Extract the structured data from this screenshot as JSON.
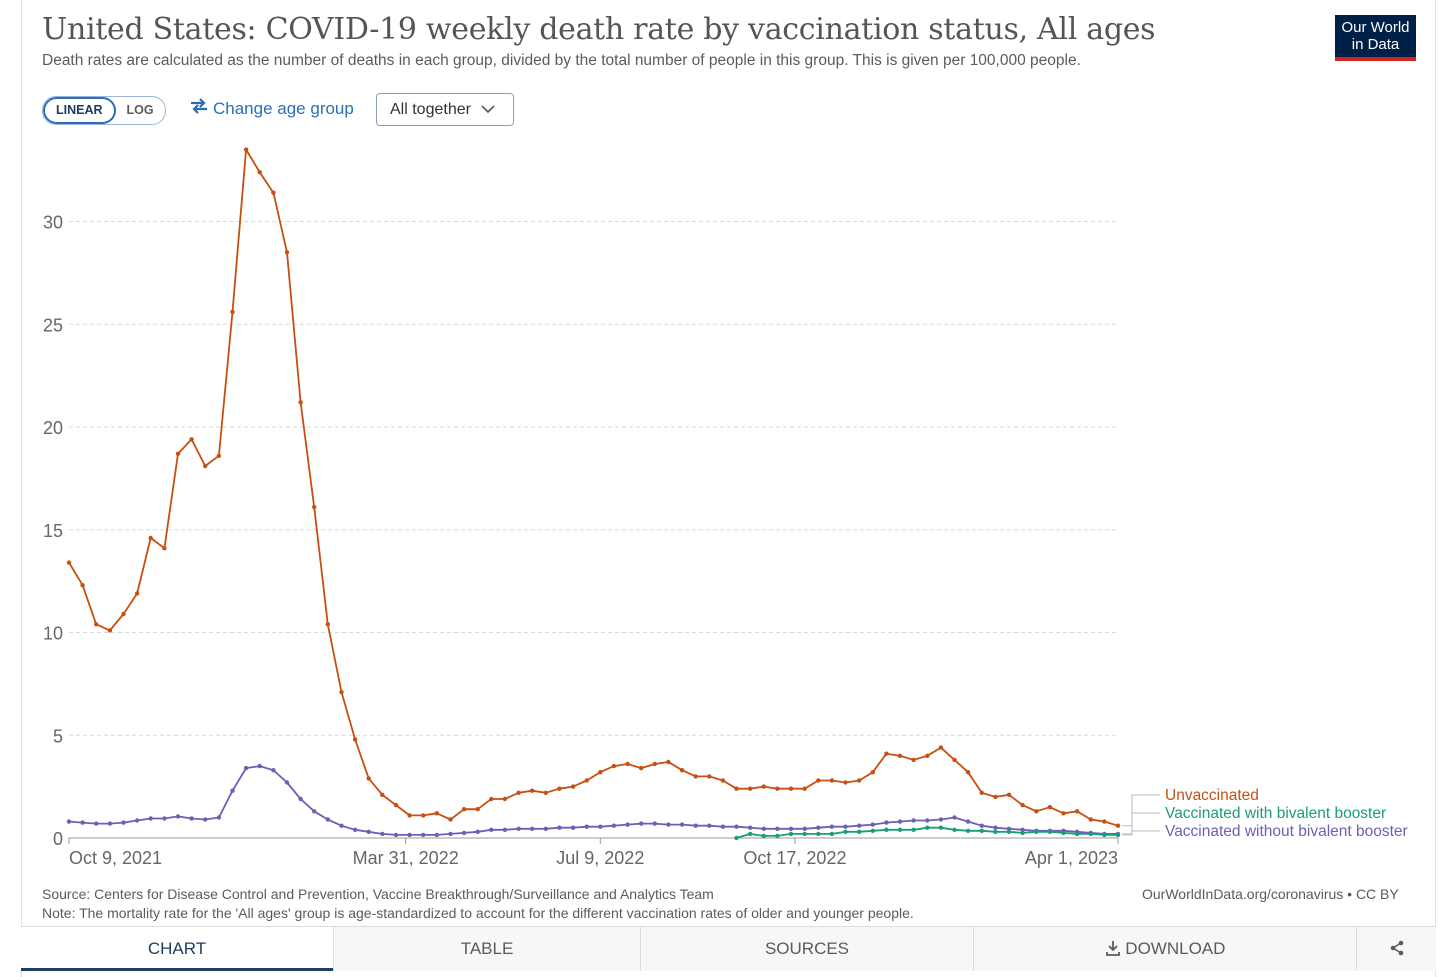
{
  "title": "United States: COVID-19 weekly death rate by vaccination status, All ages",
  "subtitle": "Death rates are calculated as the number of deaths in each group, divided by the total number of people in this group. This is given per 100,000 people.",
  "logo": {
    "line1": "Our World",
    "line2": "in Data"
  },
  "controls": {
    "linear_label": "LINEAR",
    "log_label": "LOG",
    "change_age_label": "Change age group",
    "age_group_selected": "All together"
  },
  "footer": {
    "source": "Source: Centers for Disease Control and Prevention, Vaccine Breakthrough/Surveillance and Analytics Team",
    "note": "Note: The mortality rate for the 'All ages' group is age-standardized to account for the different vaccination rates of older and younger people.",
    "link": "OurWorldInData.org/coronavirus • CC BY"
  },
  "tabs": [
    {
      "label": "CHART",
      "active": true
    },
    {
      "label": "TABLE",
      "active": false
    },
    {
      "label": "SOURCES",
      "active": false
    },
    {
      "label": "DOWNLOAD",
      "active": false,
      "icon": "download-icon"
    },
    {
      "label": "",
      "active": false,
      "icon": "share-icon"
    }
  ],
  "chart_data": {
    "type": "line",
    "title": "United States: COVID-19 weekly death rate by vaccination status, All ages",
    "xlabel": "",
    "ylabel": "",
    "x_tick_labels": [
      "Oct 9, 2021",
      "Mar 31, 2022",
      "Jul 9, 2022",
      "Oct 17, 2022",
      "Apr 1, 2023"
    ],
    "y_ticks": [
      0,
      5,
      10,
      15,
      20,
      25,
      30
    ],
    "ylim": [
      0,
      33.5
    ],
    "x_range": [
      "2021-10-09",
      "2023-04-01"
    ],
    "grid": "horizontal dashed",
    "legend_placement": "right, end of lines",
    "series": [
      {
        "name": "Unvaccinated",
        "color": "#c74f11",
        "start": "2021-10-09",
        "step_days": 7,
        "values": [
          13.4,
          12.3,
          10.4,
          10.1,
          10.9,
          11.9,
          14.6,
          14.1,
          18.7,
          19.4,
          18.1,
          18.6,
          25.6,
          33.5,
          32.4,
          31.4,
          28.5,
          21.2,
          16.1,
          10.4,
          7.1,
          4.8,
          2.9,
          2.1,
          1.6,
          1.1,
          1.1,
          1.2,
          0.9,
          1.4,
          1.4,
          1.9,
          1.9,
          2.2,
          2.3,
          2.2,
          2.4,
          2.5,
          2.8,
          3.2,
          3.5,
          3.6,
          3.4,
          3.6,
          3.7,
          3.3,
          3.0,
          3.0,
          2.8,
          2.4,
          2.4,
          2.5,
          2.4,
          2.4,
          2.4,
          2.8,
          2.8,
          2.7,
          2.8,
          3.2,
          4.1,
          4.0,
          3.8,
          4.0,
          4.4,
          3.8,
          3.2,
          2.2,
          2.0,
          2.1,
          1.6,
          1.3,
          1.5,
          1.2,
          1.3,
          0.9,
          0.8,
          0.6
        ]
      },
      {
        "name": "Vaccinated with bivalent booster",
        "color": "#1b9e77",
        "start": "2022-09-17",
        "step_days": 7,
        "values": [
          0.0,
          0.2,
          0.1,
          0.1,
          0.2,
          0.2,
          0.2,
          0.2,
          0.3,
          0.3,
          0.35,
          0.4,
          0.4,
          0.4,
          0.5,
          0.5,
          0.4,
          0.35,
          0.35,
          0.3,
          0.3,
          0.25,
          0.3,
          0.3,
          0.25,
          0.2,
          0.2,
          0.15,
          0.15
        ]
      },
      {
        "name": "Vaccinated without bivalent booster",
        "color": "#6d5fb6",
        "start": "2021-10-09",
        "step_days": 7,
        "values": [
          0.8,
          0.75,
          0.7,
          0.7,
          0.75,
          0.85,
          0.95,
          0.95,
          1.05,
          0.95,
          0.9,
          1.0,
          2.3,
          3.4,
          3.5,
          3.3,
          2.7,
          1.9,
          1.3,
          0.9,
          0.6,
          0.4,
          0.3,
          0.2,
          0.15,
          0.15,
          0.15,
          0.15,
          0.2,
          0.25,
          0.3,
          0.4,
          0.4,
          0.45,
          0.45,
          0.45,
          0.5,
          0.5,
          0.55,
          0.55,
          0.6,
          0.65,
          0.7,
          0.7,
          0.65,
          0.65,
          0.6,
          0.6,
          0.55,
          0.55,
          0.5,
          0.45,
          0.45,
          0.45,
          0.45,
          0.5,
          0.55,
          0.55,
          0.6,
          0.65,
          0.75,
          0.8,
          0.85,
          0.85,
          0.9,
          1.0,
          0.8,
          0.6,
          0.5,
          0.45,
          0.4,
          0.35,
          0.35,
          0.35,
          0.3,
          0.25,
          0.2,
          0.2
        ]
      }
    ]
  }
}
